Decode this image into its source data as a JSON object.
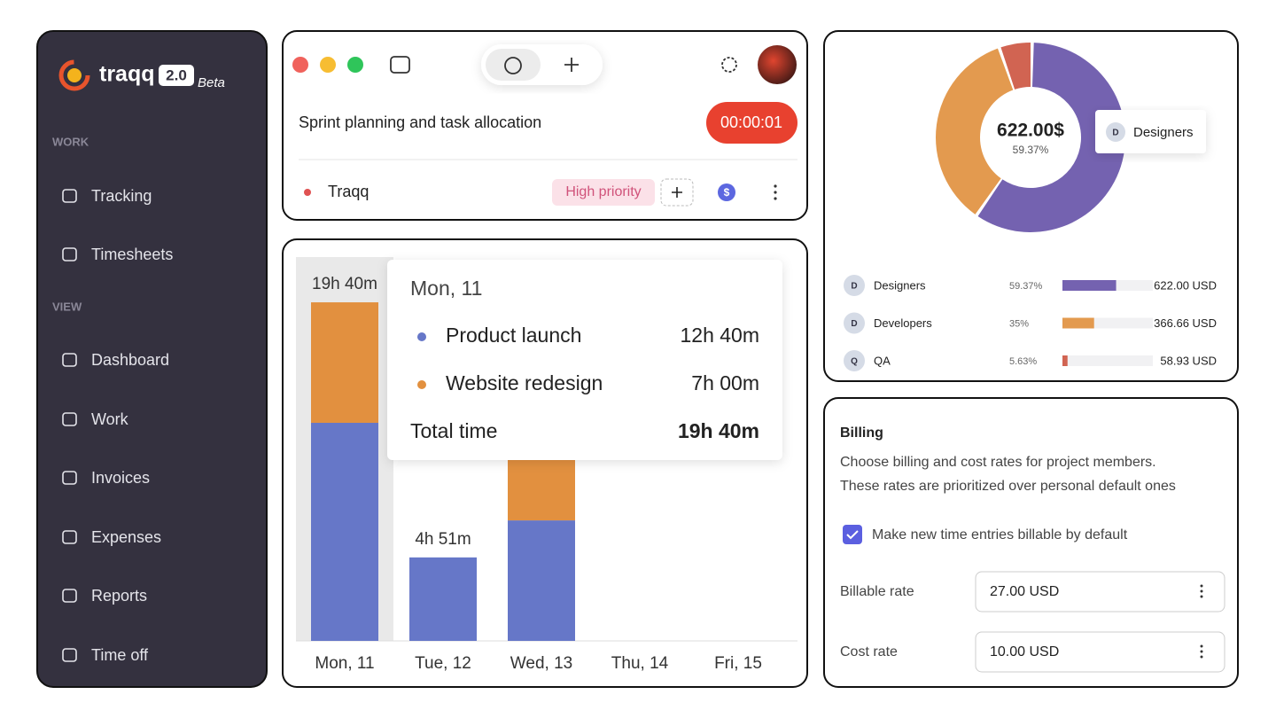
{
  "sidebar": {
    "logo": "traqq",
    "version": "2.0",
    "badge": "Beta",
    "sections": [
      {
        "title": "WORK",
        "items": [
          "Tracking",
          "Timesheets"
        ]
      },
      {
        "title": "VIEW",
        "items": [
          "Dashboard",
          "Work",
          "Invoices",
          "Expenses",
          "Reports",
          "Time off"
        ]
      }
    ]
  },
  "timer": {
    "task": "Sprint planning and task allocation",
    "elapsed": "00:00:01",
    "project": "Traqq",
    "tag": "High priority"
  },
  "time_chart": {
    "type": "bar",
    "stacked": true,
    "categories": [
      "Mon, 11",
      "Tue, 12",
      "Wed, 13",
      "Thu, 14",
      "Fri, 15"
    ],
    "series": [
      {
        "name": "Product launch",
        "color": "#6677c8",
        "values": [
          12.67,
          4.85,
          7.0,
          null,
          null
        ],
        "value_labels": [
          "12h 40m",
          null,
          null,
          null,
          null
        ]
      },
      {
        "name": "Website redesign",
        "color": "#e2903f",
        "values": [
          7.0,
          null,
          4.5,
          null,
          null
        ],
        "value_labels": [
          "7h 00m",
          null,
          null,
          null,
          null
        ]
      }
    ],
    "total_labels": [
      "19h 40m",
      "4h 51m",
      null,
      null,
      null
    ],
    "ylim": [
      0,
      22.3
    ],
    "tooltip": {
      "title": "Mon, 11",
      "total_label": "Total time",
      "total": "19h 40m"
    }
  },
  "cost_chart": {
    "type": "donut",
    "categories": [
      "Designers",
      "Developers",
      "QA"
    ],
    "initials": [
      "D",
      "D",
      "Q"
    ],
    "colors": [
      "#7462b0",
      "#e39a4f",
      "#d16452"
    ],
    "values": [
      622.0,
      366.66,
      58.93
    ],
    "value_labels": [
      "622.00 USD",
      "366.66 USD",
      "58.93 USD"
    ],
    "percents": [
      59.37,
      35,
      5.63
    ],
    "percent_labels": [
      "59.37%",
      "35%",
      "5.63%"
    ],
    "center_label": "622.00$"
  },
  "billing": {
    "title": "Billing",
    "description": [
      "Choose billing and cost rates for project members.",
      "These rates are prioritized over personal default ones"
    ],
    "checkbox": {
      "label": "Make new time entries billable by default",
      "checked": true
    },
    "fields": [
      {
        "label": "Billable rate",
        "value": "27.00 USD"
      },
      {
        "label": "Cost rate",
        "value": "10.00 USD"
      }
    ]
  }
}
